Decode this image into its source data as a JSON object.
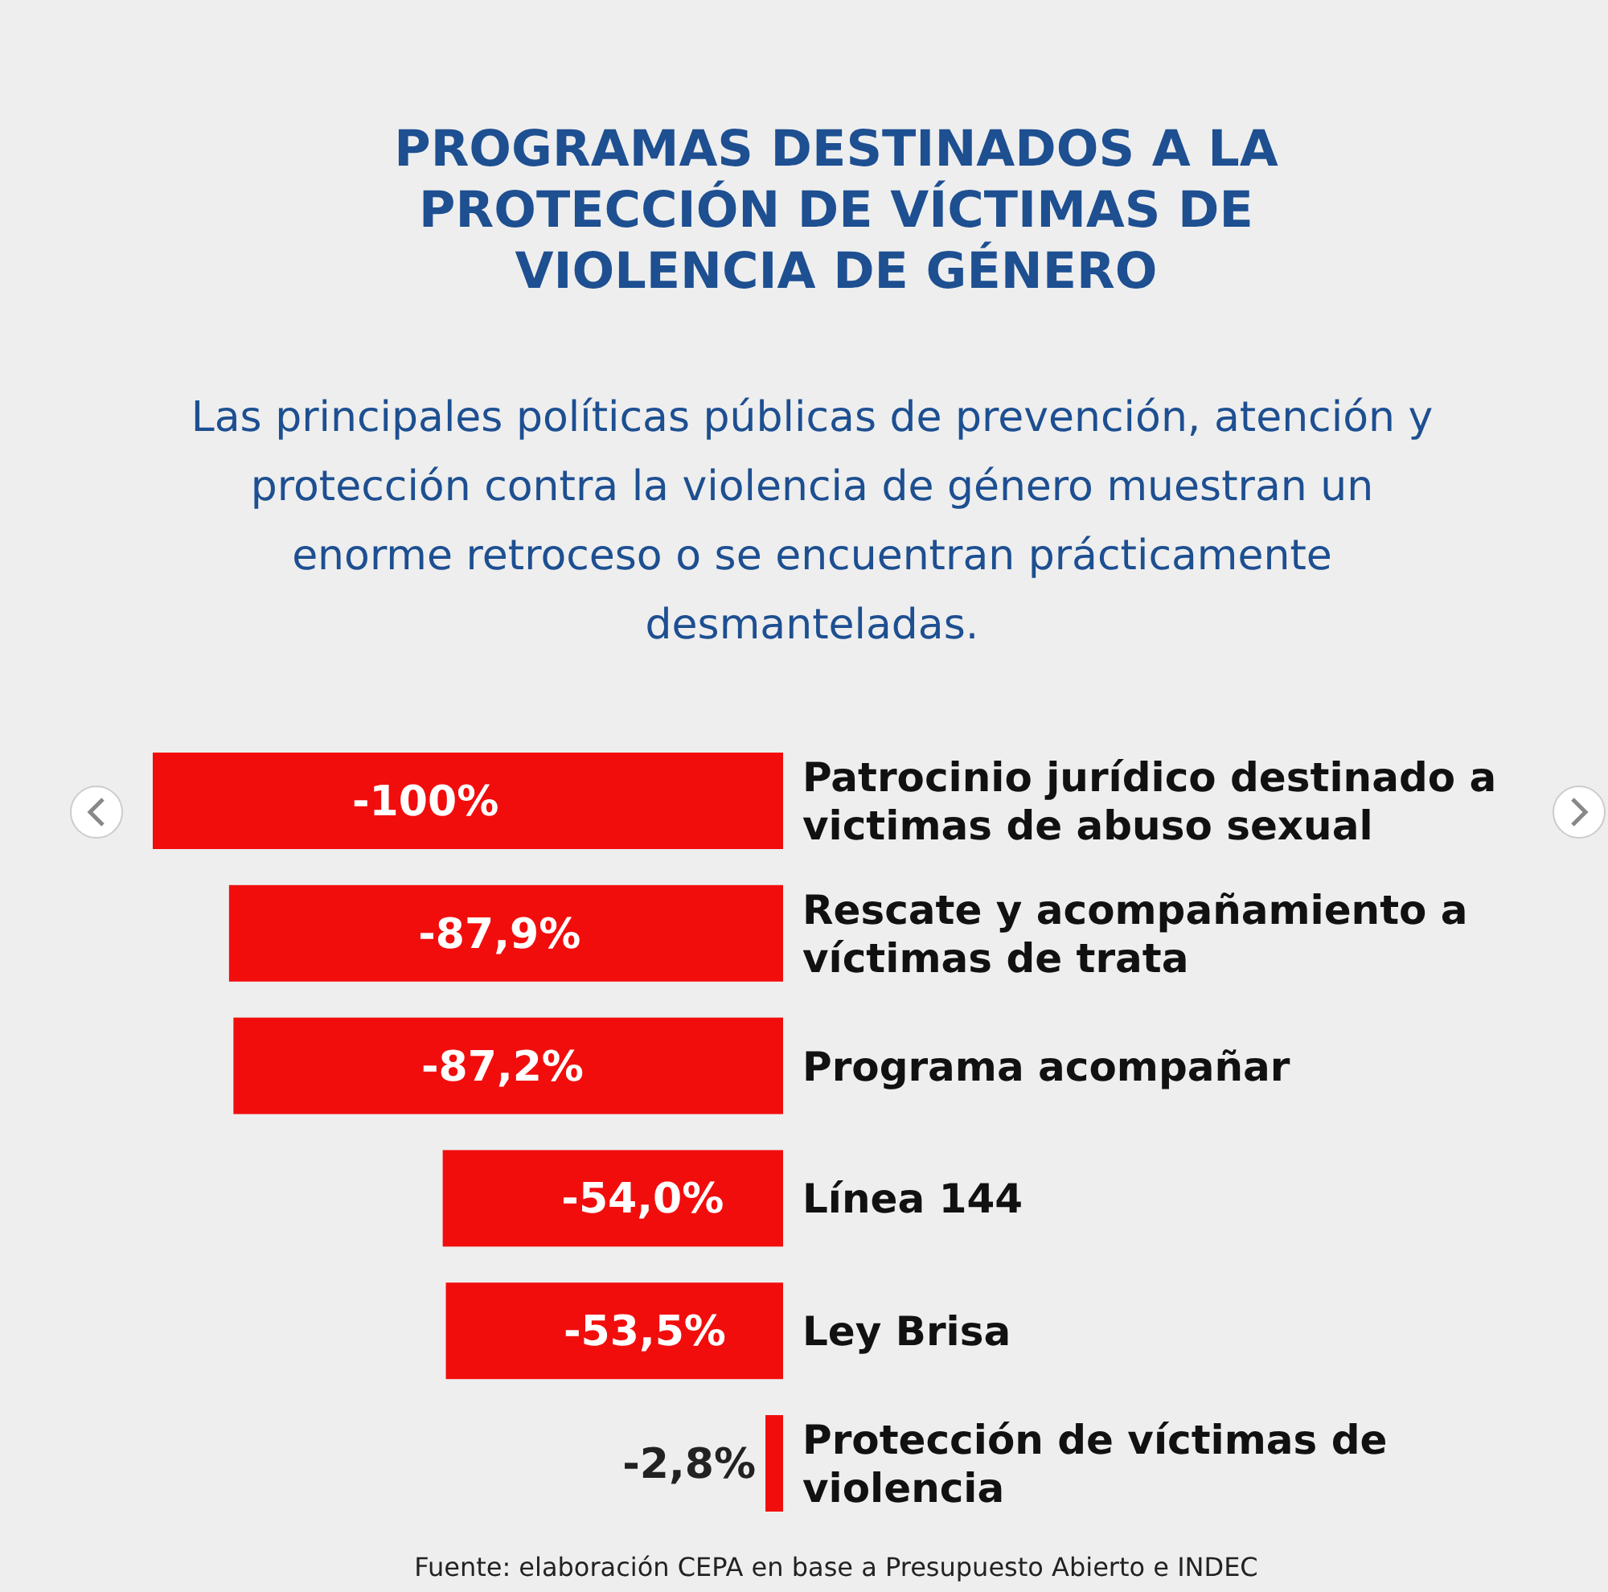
{
  "chart_data": {
    "type": "bar",
    "orientation": "horizontal",
    "title": "PROGRAMAS DESTINADOS A LA PROTECCIÓN DE VÍCTIMAS DE VIOLENCIA DE GÉNERO",
    "subtitle": "Las principales políticas públicas de prevención, atención y protección contra la violencia de género muestran un enorme retroceso o se encuentran prácticamente desmanteladas.",
    "categories": [
      "Patrocinio jurídico destinado a victimas de abuso sexual",
      "Rescate y acompañamiento a víctimas de trata",
      "Programa acompañar",
      "Línea 144",
      "Ley Brisa",
      "Protección de víctimas de violencia"
    ],
    "values": [
      -100,
      -87.9,
      -87.2,
      -54.0,
      -53.5,
      -2.8
    ],
    "value_labels": [
      "-100%",
      "-87,9%",
      "-87,2%",
      "-54,0%",
      "-53,5%",
      "-2,8%"
    ],
    "color": "#f20d0d",
    "xlim": [
      -100,
      0
    ],
    "annotations": [
      "Fuente: elaboración CEPA en base a Presupuesto Abierto e INDEC"
    ]
  }
}
